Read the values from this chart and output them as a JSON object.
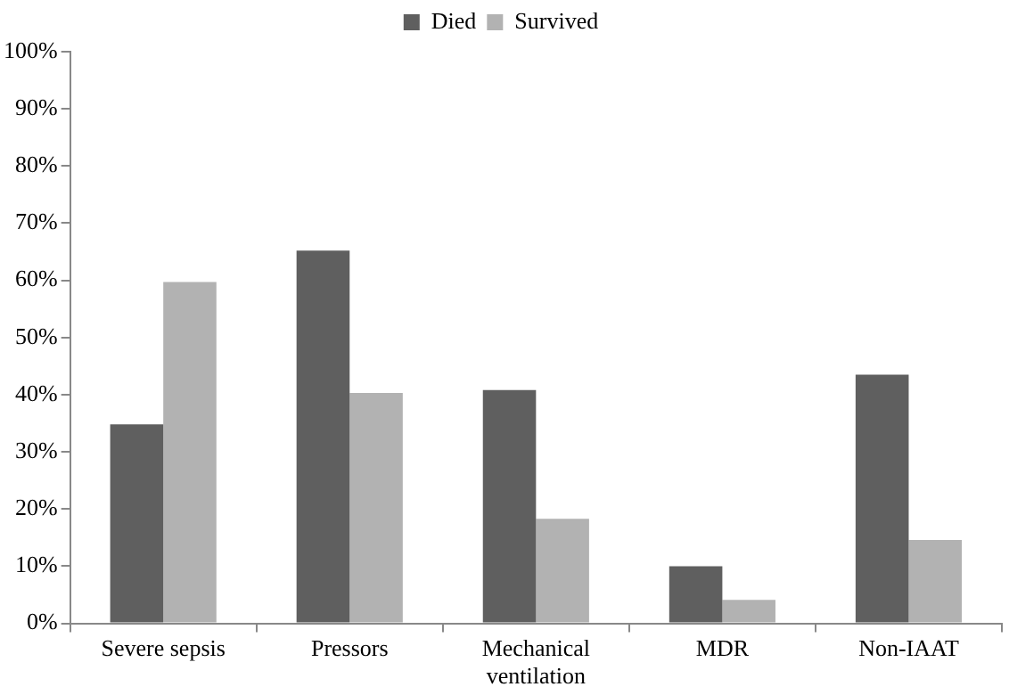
{
  "chart_data": {
    "type": "bar",
    "categories": [
      "Severe sepsis",
      "Pressors",
      "Mechanical ventilation",
      "MDR",
      "Non-IAAT"
    ],
    "series": [
      {
        "name": "Died",
        "color": "#5f5f5f",
        "values": [
          34.8,
          65.2,
          40.8,
          10.0,
          43.5
        ]
      },
      {
        "name": "Survived",
        "color": "#b2b2b2",
        "values": [
          59.7,
          40.3,
          18.3,
          4.1,
          14.6
        ]
      }
    ],
    "ylim": [
      0,
      100
    ],
    "yticks": [
      {
        "value": 0,
        "label": "0%"
      },
      {
        "value": 10,
        "label": "10%"
      },
      {
        "value": 20,
        "label": "20%"
      },
      {
        "value": 30,
        "label": "30%"
      },
      {
        "value": 40,
        "label": "40%"
      },
      {
        "value": 50,
        "label": "50%"
      },
      {
        "value": 60,
        "label": "60%"
      },
      {
        "value": 70,
        "label": "70%"
      },
      {
        "value": 80,
        "label": "80%"
      },
      {
        "value": 90,
        "label": "90%"
      },
      {
        "value": 100,
        "label": "100%"
      }
    ],
    "grid": false,
    "legend": "top"
  }
}
